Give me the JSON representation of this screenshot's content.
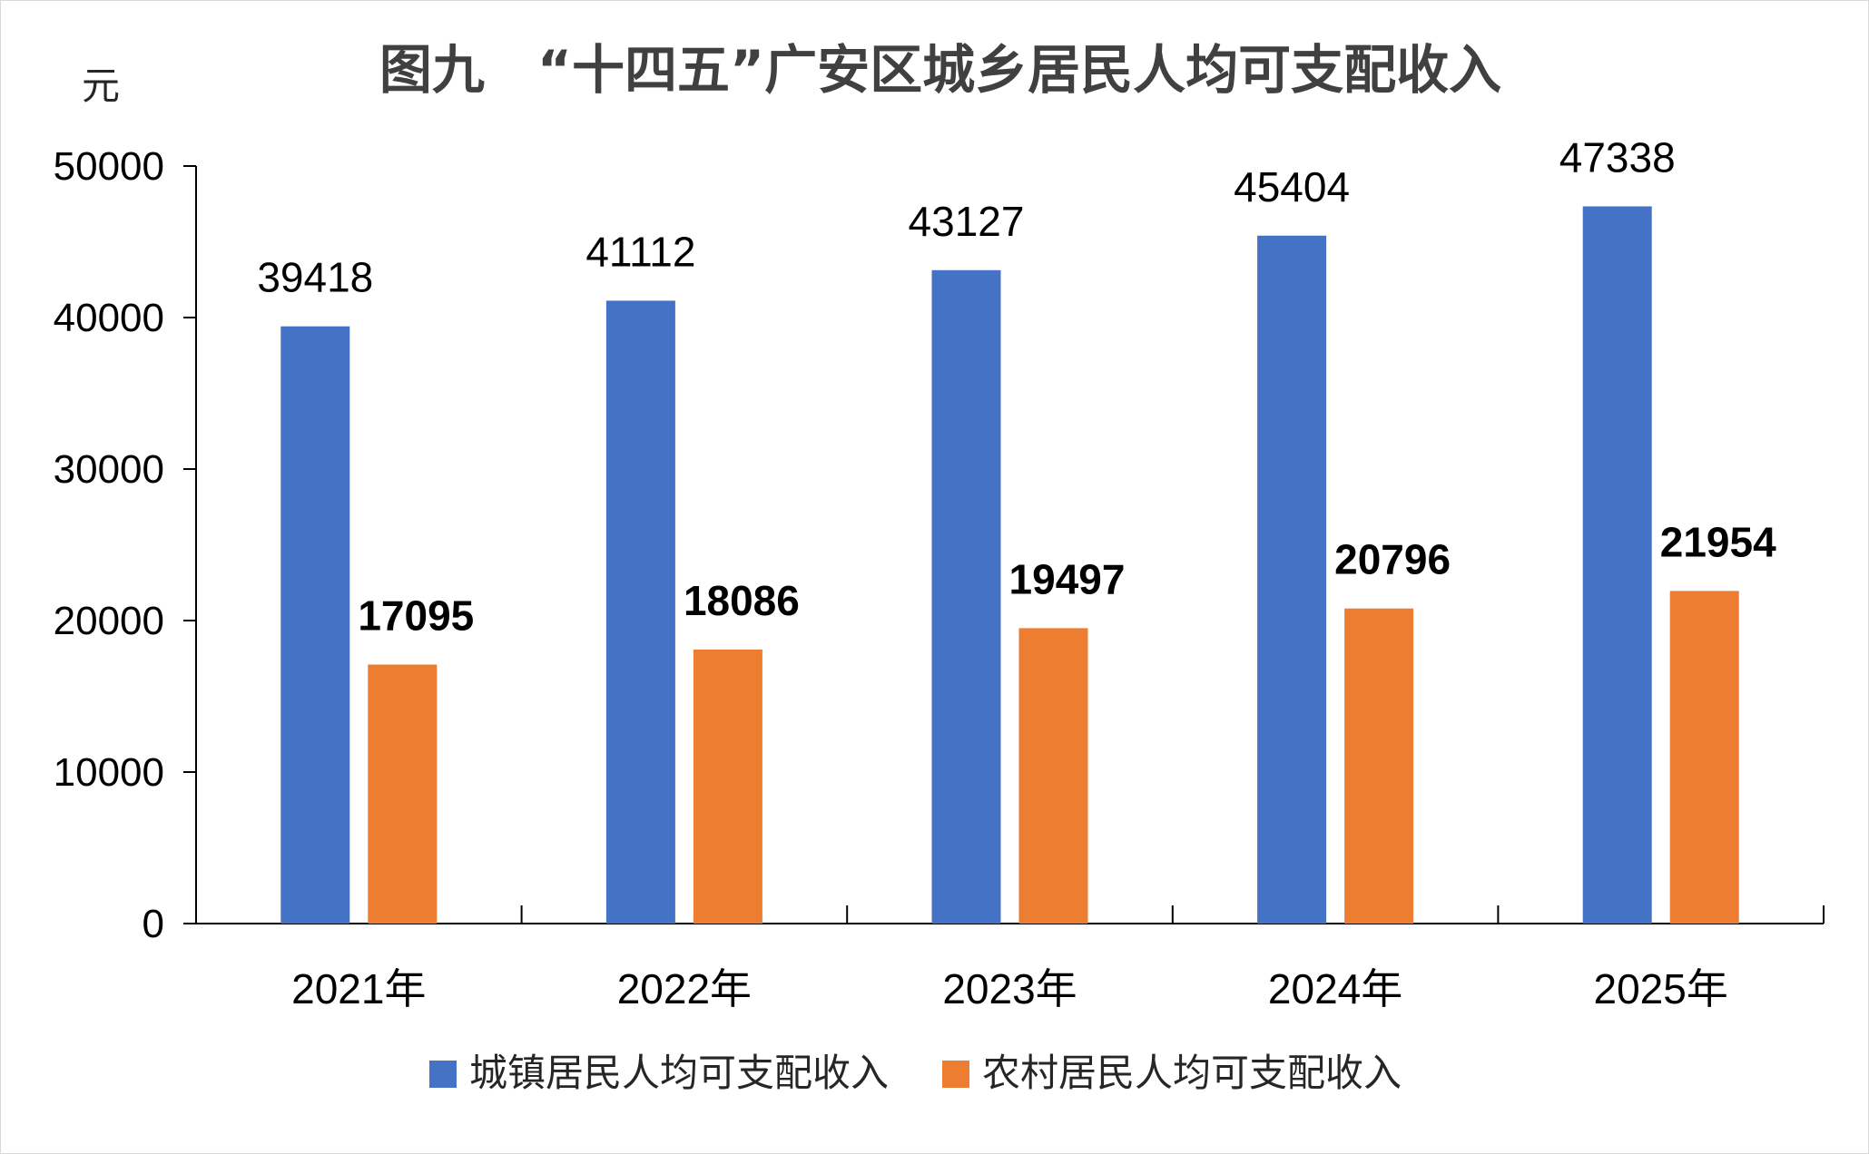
{
  "chart_data": {
    "type": "bar",
    "title": "图九　“十四五”广安区城乡居民人均可支配收入",
    "unit_label": "元",
    "categories": [
      "2021年",
      "2022年",
      "2023年",
      "2024年",
      "2025年"
    ],
    "series": [
      {
        "name": "城镇居民人均可支配收入",
        "color": "#4472C4",
        "values": [
          39418,
          41112,
          43127,
          45404,
          47338
        ]
      },
      {
        "name": "农村居民人均可支配收入",
        "color": "#ED7D31",
        "values": [
          17095,
          18086,
          19497,
          20796,
          21954
        ]
      }
    ],
    "ylim": [
      0,
      50000
    ],
    "yticks": [
      0,
      10000,
      20000,
      30000,
      40000,
      50000
    ],
    "grid": false,
    "legend_position": "bottom"
  }
}
